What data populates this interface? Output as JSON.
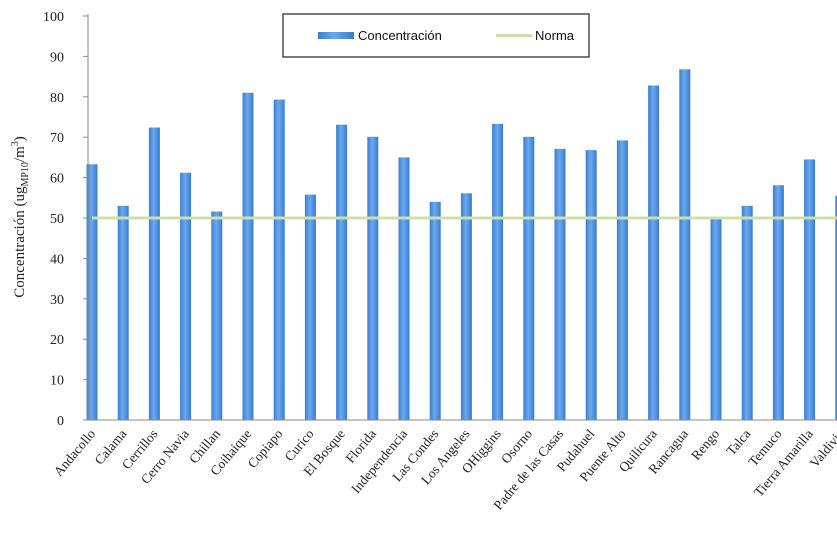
{
  "chart_data": {
    "type": "bar",
    "categories": [
      "Andacollo",
      "Calama",
      "Cerrillos",
      "Cerro Navia",
      "Chillan",
      "Coihaique",
      "Copiapo",
      "Curico",
      "El Bosque",
      "Florida",
      "Independencia",
      "Las Condes",
      "Los Angeles",
      "OHiggins",
      "Osorno",
      "Padre de las Casas",
      "Pudahuel",
      "Puente Alto",
      "Quilicura",
      "Rancagua",
      "Rengo",
      "Talca",
      "Temuco",
      "Tierra Amarilla",
      "Valdivia"
    ],
    "series": [
      {
        "name": "Concentración",
        "type": "bar",
        "color": "#4a8fe0",
        "values": [
          63.3,
          53.0,
          72.4,
          61.2,
          51.6,
          81.0,
          79.3,
          55.8,
          73.1,
          70.1,
          65.0,
          54.0,
          56.1,
          73.3,
          70.1,
          67.1,
          66.8,
          69.2,
          82.8,
          86.8,
          50.2,
          53.0,
          58.1,
          64.5,
          55.5
        ]
      },
      {
        "name": "Norma",
        "type": "line",
        "color": "#cfdfa8",
        "values": [
          50,
          50,
          50,
          50,
          50,
          50,
          50,
          50,
          50,
          50,
          50,
          50,
          50,
          50,
          50,
          50,
          50,
          50,
          50,
          50,
          50,
          50,
          50,
          50,
          50
        ]
      }
    ],
    "ylabel_main": "Concentración (ug",
    "ylabel_sub": "MP10",
    "ylabel_unit": "/m",
    "ylabel_sup": "3",
    "ylabel_close": ")",
    "ylim": [
      0,
      100
    ],
    "yticks": [
      "0",
      "10",
      "20",
      "30",
      "40",
      "50",
      "60",
      "70",
      "80",
      "90",
      "100"
    ],
    "grid": false,
    "legend": "top-center"
  }
}
